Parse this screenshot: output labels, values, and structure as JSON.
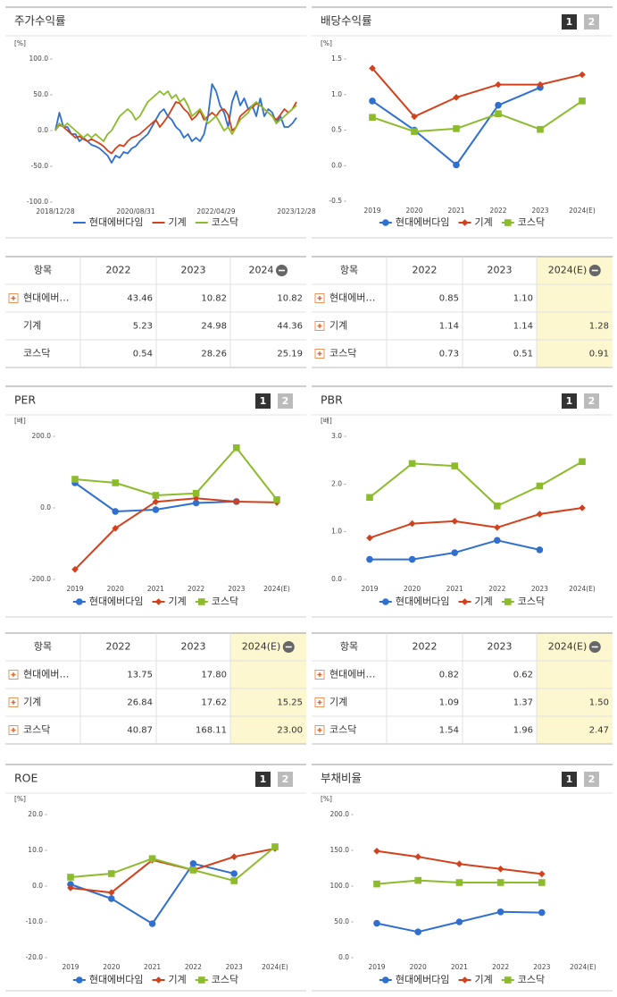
{
  "chart_data": [
    {
      "type": "line",
      "title": "주가수익률",
      "y_unit": "[%]",
      "markers": false,
      "categories": [
        "2018/12/28",
        null,
        null,
        null,
        null,
        null,
        null,
        null,
        null,
        null,
        null,
        null,
        null,
        null,
        null,
        null,
        null,
        null,
        null,
        null,
        "2020/08/31",
        null,
        null,
        null,
        null,
        null,
        null,
        null,
        null,
        null,
        null,
        null,
        null,
        null,
        null,
        null,
        null,
        null,
        null,
        null,
        "2022/04/29",
        null,
        null,
        null,
        null,
        null,
        null,
        null,
        null,
        null,
        null,
        null,
        null,
        null,
        null,
        null,
        null,
        null,
        null,
        null,
        "2023/12/28"
      ],
      "series": [
        {
          "name": "현대에버다임",
          "color": "#2f6fd0",
          "marker": "circle",
          "values": [
            0,
            25,
            5,
            5,
            -5,
            -5,
            -15,
            -10,
            -15,
            -20,
            -22,
            -25,
            -30,
            -35,
            -45,
            -35,
            -38,
            -30,
            -32,
            -25,
            -22,
            -15,
            -10,
            -5,
            5,
            15,
            25,
            30,
            20,
            15,
            5,
            0,
            -10,
            -5,
            -15,
            -10,
            -15,
            -5,
            20,
            65,
            55,
            35,
            25,
            5,
            40,
            55,
            35,
            45,
            30,
            35,
            20,
            45,
            20,
            30,
            25,
            10,
            20,
            5,
            5,
            10,
            18
          ]
        },
        {
          "name": "기계",
          "color": "#d2401c",
          "marker": "diamond",
          "values": [
            0,
            8,
            5,
            0,
            -5,
            -10,
            -8,
            -12,
            -15,
            -12,
            -15,
            -18,
            -22,
            -28,
            -32,
            -25,
            -20,
            -22,
            -15,
            -10,
            -8,
            -5,
            0,
            5,
            10,
            15,
            5,
            12,
            20,
            30,
            40,
            38,
            30,
            25,
            15,
            20,
            28,
            15,
            20,
            25,
            20,
            28,
            30,
            22,
            0,
            5,
            20,
            25,
            30,
            32,
            38,
            35,
            30,
            25,
            20,
            15,
            22,
            30,
            25,
            30,
            40
          ]
        },
        {
          "name": "코스닥",
          "color": "#8cbb2c",
          "marker": "square",
          "values": [
            0,
            10,
            5,
            10,
            5,
            0,
            -5,
            -10,
            -5,
            -10,
            -5,
            -10,
            -15,
            -5,
            0,
            10,
            20,
            25,
            30,
            25,
            15,
            20,
            30,
            40,
            45,
            50,
            55,
            50,
            55,
            45,
            50,
            40,
            45,
            35,
            20,
            25,
            30,
            20,
            10,
            15,
            20,
            10,
            0,
            5,
            -5,
            5,
            15,
            20,
            25,
            35,
            40,
            35,
            30,
            25,
            20,
            10,
            15,
            20,
            25,
            30,
            35
          ]
        }
      ],
      "ylim": [
        -100,
        100
      ],
      "yticks": [
        {
          "value": 100,
          "label": "100.0"
        },
        {
          "value": 50,
          "label": "50.0"
        },
        {
          "value": 0,
          "label": "0.0"
        },
        {
          "value": -50,
          "label": "-50.0"
        },
        {
          "value": -100,
          "label": "-100.0"
        }
      ]
    },
    {
      "type": "line",
      "title": "배당수익률",
      "buttons": [
        "1",
        "2"
      ],
      "y_unit": "[%]",
      "markers": true,
      "categories": [
        "2019",
        "2020",
        "2021",
        "2022",
        "2023",
        "2024(E)"
      ],
      "series": [
        {
          "name": "현대에버다임",
          "color": "#2f6fd0",
          "marker": "circle",
          "values": [
            0.91,
            0.5,
            0.01,
            0.85,
            1.1,
            null
          ]
        },
        {
          "name": "기계",
          "color": "#d2401c",
          "marker": "diamond",
          "values": [
            1.37,
            0.69,
            0.96,
            1.14,
            1.14,
            1.28
          ]
        },
        {
          "name": "코스닥",
          "color": "#8cbb2c",
          "marker": "square",
          "values": [
            0.68,
            0.48,
            0.52,
            0.73,
            0.51,
            0.91
          ]
        }
      ],
      "ylim": [
        -0.5,
        1.5
      ],
      "yticks": [
        -0.5,
        {
          "value": 0,
          "label": "0.0"
        },
        0.5,
        {
          "value": 1,
          "label": "1.0"
        },
        1.5
      ]
    },
    {
      "type": "line",
      "title": "PER",
      "buttons": [
        "1",
        "2"
      ],
      "y_unit": "[배]",
      "markers": true,
      "categories": [
        "2019",
        "2020",
        "2021",
        "2022",
        "2023",
        "2024(E)"
      ],
      "series": [
        {
          "name": "현대에버다임",
          "color": "#2f6fd0",
          "marker": "circle",
          "values": [
            70,
            -10,
            -5,
            13.75,
            17.8,
            null
          ]
        },
        {
          "name": "기계",
          "color": "#d2401c",
          "marker": "diamond",
          "values": [
            -172,
            -57,
            17,
            26.84,
            17.62,
            15.25
          ]
        },
        {
          "name": "코스닥",
          "color": "#8cbb2c",
          "marker": "square",
          "values": [
            80,
            70,
            35,
            40.87,
            168.11,
            23.0
          ]
        }
      ],
      "ylim": [
        -200,
        200
      ],
      "yticks": [
        {
          "value": -200,
          "label": "-200.0"
        },
        {
          "value": 0,
          "label": "0.0"
        },
        {
          "value": 200,
          "label": "200.0"
        }
      ]
    },
    {
      "type": "line",
      "title": "PBR",
      "buttons": [
        "1",
        "2"
      ],
      "y_unit": "[배]",
      "markers": true,
      "categories": [
        "2019",
        "2020",
        "2021",
        "2022",
        "2023",
        "2024(E)"
      ],
      "series": [
        {
          "name": "현대에버다임",
          "color": "#2f6fd0",
          "marker": "circle",
          "values": [
            0.42,
            0.42,
            0.56,
            0.82,
            0.62,
            null
          ]
        },
        {
          "name": "기계",
          "color": "#d2401c",
          "marker": "diamond",
          "values": [
            0.87,
            1.17,
            1.22,
            1.09,
            1.37,
            1.5
          ]
        },
        {
          "name": "코스닥",
          "color": "#8cbb2c",
          "marker": "square",
          "values": [
            1.72,
            2.43,
            2.38,
            1.54,
            1.96,
            2.47
          ]
        }
      ],
      "ylim": [
        0,
        3
      ],
      "yticks": [
        {
          "value": 0,
          "label": "0.0"
        },
        {
          "value": 1,
          "label": "1.0"
        },
        {
          "value": 2,
          "label": "2.0"
        },
        {
          "value": 3,
          "label": "3.0"
        }
      ]
    },
    {
      "type": "line",
      "title": "ROE",
      "buttons": [
        "1",
        "2"
      ],
      "y_unit": "[%]",
      "markers": true,
      "categories": [
        "2019",
        "2020",
        "2021",
        "2022",
        "2023",
        "2024(E)"
      ],
      "series": [
        {
          "name": "현대에버다임",
          "color": "#2f6fd0",
          "marker": "circle",
          "values": [
            0.5,
            -3.5,
            -10.5,
            6.3,
            3.5,
            null
          ]
        },
        {
          "name": "기계",
          "color": "#d2401c",
          "marker": "diamond",
          "values": [
            -0.5,
            -1.8,
            7.3,
            4.5,
            8.2,
            10.5
          ]
        },
        {
          "name": "코스닥",
          "color": "#8cbb2c",
          "marker": "square",
          "values": [
            2.5,
            3.5,
            7.7,
            4.5,
            1.5,
            11
          ]
        }
      ],
      "ylim": [
        -20,
        20
      ],
      "yticks": [
        {
          "value": -20,
          "label": "-20.0"
        },
        {
          "value": -10,
          "label": "-10.0"
        },
        {
          "value": 0,
          "label": "0.0"
        },
        {
          "value": 10,
          "label": "10.0"
        },
        {
          "value": 20,
          "label": "20.0"
        }
      ]
    },
    {
      "type": "line",
      "title": "부채비율",
      "buttons": [
        "1",
        "2"
      ],
      "y_unit": "[%]",
      "markers": true,
      "categories": [
        "2019",
        "2020",
        "2021",
        "2022",
        "2023",
        "2024(E)"
      ],
      "series": [
        {
          "name": "현대에버다임",
          "color": "#2f6fd0",
          "marker": "circle",
          "values": [
            48,
            36,
            50,
            64,
            63,
            null
          ]
        },
        {
          "name": "기계",
          "color": "#d2401c",
          "marker": "diamond",
          "values": [
            149,
            141,
            131,
            124,
            117,
            null
          ]
        },
        {
          "name": "코스닥",
          "color": "#8cbb2c",
          "marker": "square",
          "values": [
            103,
            108,
            105,
            105,
            105,
            null
          ]
        }
      ],
      "ylim": [
        0,
        200
      ],
      "yticks": [
        {
          "value": 0,
          "label": "0.0"
        },
        {
          "value": 50,
          "label": "50.0"
        },
        {
          "value": 100,
          "label": "100.0"
        },
        {
          "value": 150,
          "label": "150.0"
        },
        {
          "value": 200,
          "label": "200.0"
        }
      ]
    }
  ],
  "tables": [
    {
      "headers": [
        "항목",
        "2022",
        "2023",
        "2024"
      ],
      "highlight_last_column": false,
      "plus_icon": [
        true,
        false,
        false
      ],
      "rows": [
        [
          "현대에버…",
          "43.46",
          "10.82",
          "10.82"
        ],
        [
          "기계",
          "5.23",
          "24.98",
          "44.36"
        ],
        [
          "코스닥",
          "0.54",
          "28.26",
          "25.19"
        ]
      ]
    },
    {
      "headers": [
        "항목",
        "2022",
        "2023",
        "2024(E)"
      ],
      "highlight_last_column": true,
      "plus_icon": [
        true,
        true,
        true
      ],
      "rows": [
        [
          "현대에버…",
          "0.85",
          "1.10",
          null
        ],
        [
          "기계",
          "1.14",
          "1.14",
          "1.28"
        ],
        [
          "코스닥",
          "0.73",
          "0.51",
          "0.91"
        ]
      ]
    },
    {
      "headers": [
        "항목",
        "2022",
        "2023",
        "2024(E)"
      ],
      "highlight_last_column": true,
      "plus_icon": [
        true,
        true,
        true
      ],
      "rows": [
        [
          "현대에버…",
          "13.75",
          "17.80",
          null
        ],
        [
          "기계",
          "26.84",
          "17.62",
          "15.25"
        ],
        [
          "코스닥",
          "40.87",
          "168.11",
          "23.00"
        ]
      ]
    },
    {
      "headers": [
        "항목",
        "2022",
        "2023",
        "2024(E)"
      ],
      "highlight_last_column": true,
      "plus_icon": [
        true,
        true,
        true
      ],
      "rows": [
        [
          "현대에버…",
          "0.82",
          "0.62",
          null
        ],
        [
          "기계",
          "1.09",
          "1.37",
          "1.50"
        ],
        [
          "코스닥",
          "1.54",
          "1.96",
          "2.47"
        ]
      ]
    }
  ]
}
